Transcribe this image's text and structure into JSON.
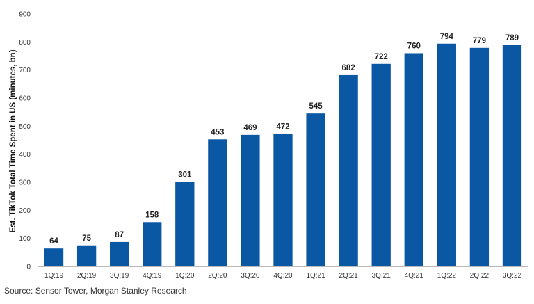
{
  "chart_data": {
    "type": "bar",
    "title": "",
    "xlabel": "",
    "ylabel": "Est. TikTok Total Time Spent in US (minutes, bn)",
    "categories": [
      "1Q:19",
      "2Q:19",
      "3Q:19",
      "4Q:19",
      "1Q:20",
      "2Q:20",
      "3Q:20",
      "4Q:20",
      "1Q:21",
      "2Q:21",
      "3Q:21",
      "4Q:21",
      "1Q:22",
      "2Q:22",
      "3Q:22"
    ],
    "values": [
      64,
      75,
      87,
      158,
      301,
      453,
      469,
      472,
      545,
      682,
      722,
      760,
      794,
      779,
      789
    ],
    "ylim": [
      0,
      900
    ],
    "yticks": [
      0,
      100,
      200,
      300,
      400,
      500,
      600,
      700,
      800,
      900
    ],
    "grid": false,
    "bar_color": "#0a57a4"
  },
  "footer": {
    "source": "Source: Sensor Tower, Morgan Stanley Research"
  }
}
